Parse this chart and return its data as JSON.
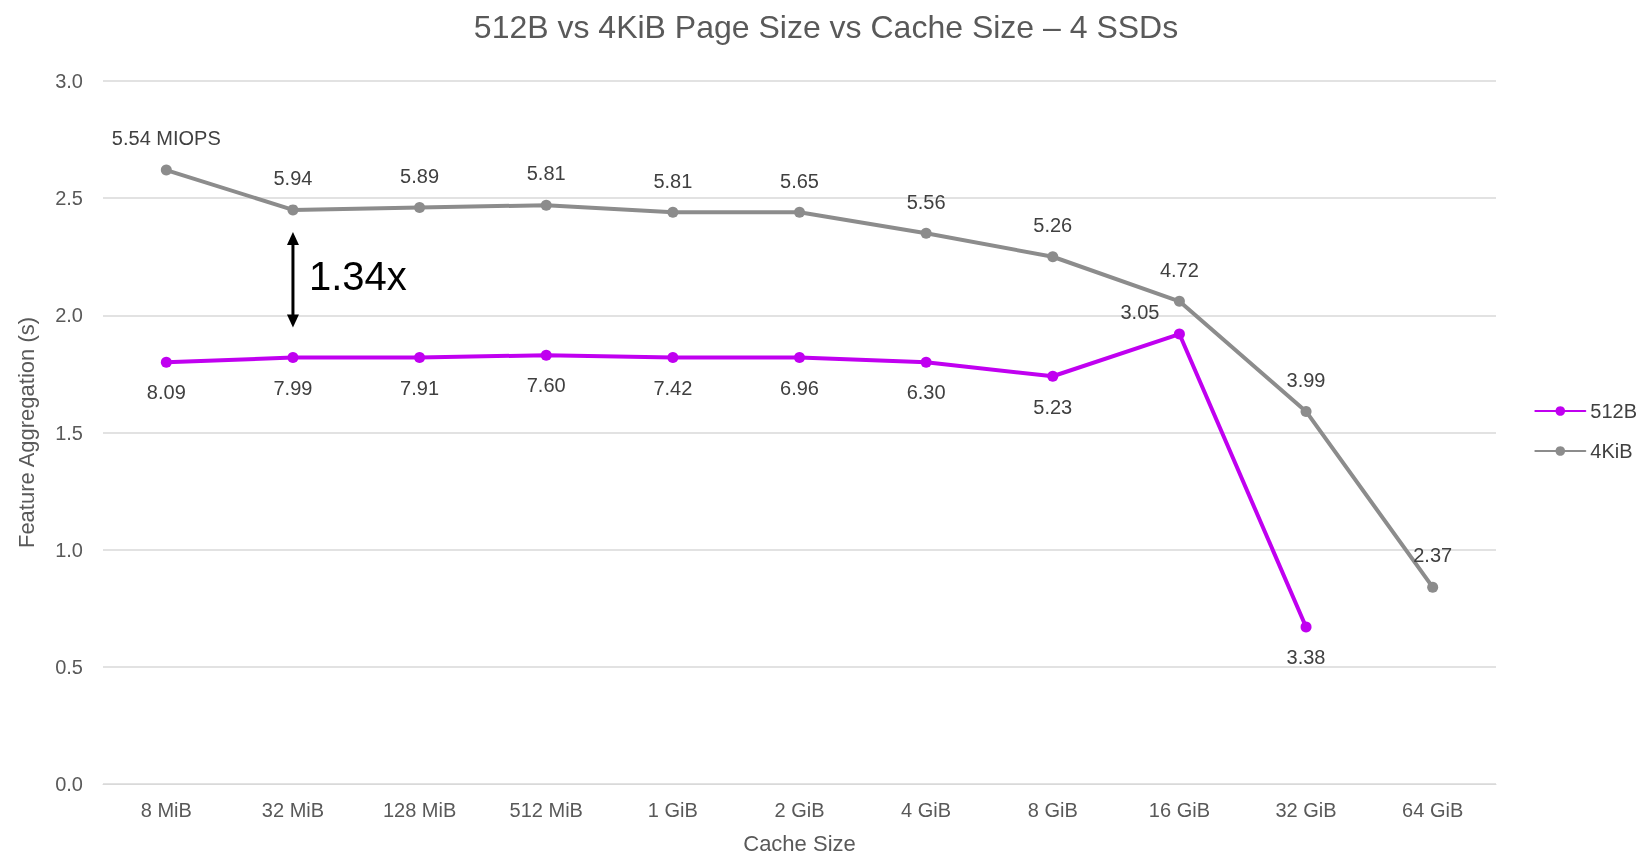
{
  "chart_data": {
    "type": "line",
    "title": "512B vs 4KiB Page Size vs Cache Size – 4 SSDs",
    "xlabel": "Cache Size",
    "ylabel": "Feature Aggregation (s)",
    "categories": [
      "8 MiB",
      "32 MiB",
      "128 MiB",
      "512 MiB",
      "1 GiB",
      "2 GiB",
      "4 GiB",
      "8 GiB",
      "16 GiB",
      "32 GiB",
      "64 GiB"
    ],
    "series": [
      {
        "name": "512B",
        "color": "#c000f0",
        "values": [
          1.8,
          1.82,
          1.82,
          1.83,
          1.82,
          1.82,
          1.8,
          1.74,
          1.92,
          0.67,
          null
        ]
      },
      {
        "name": "4KiB",
        "color": "#8c8c8c",
        "values": [
          2.62,
          2.45,
          2.46,
          2.47,
          2.44,
          2.44,
          2.35,
          2.25,
          2.06,
          1.59,
          0.84
        ]
      }
    ],
    "ylim": [
      0,
      3
    ],
    "yticks": [
      {
        "value": 0,
        "label": "0.0"
      },
      {
        "value": 0.5,
        "label": "0.5"
      },
      {
        "value": 1,
        "label": "1.0"
      },
      {
        "value": 1.5,
        "label": "1.5"
      },
      {
        "value": 2,
        "label": "2.0"
      },
      {
        "value": 2.5,
        "label": "2.5"
      },
      {
        "value": 3,
        "label": "3.0"
      }
    ],
    "annotations": [
      "1.34x",
      {
        "text": "8.09",
        "x": "8 MiB",
        "y": 1.8
      },
      {
        "text": "7.99",
        "x": "32 MiB",
        "y": 1.82
      },
      {
        "text": "7.91",
        "x": "128 MiB",
        "y": 1.82
      },
      {
        "text": "7.60",
        "x": "512 MiB",
        "y": 1.83
      },
      {
        "text": "7.42",
        "x": "1 GiB",
        "y": 1.82
      },
      {
        "text": "6.96",
        "x": "2 GiB",
        "y": 1.82
      },
      {
        "text": "6.30",
        "x": "4 GiB",
        "y": 1.8
      },
      {
        "text": "5.23",
        "x": "8 GiB",
        "y": 1.74
      },
      {
        "text": "3.05",
        "x": "16 GiB",
        "y": 1.92
      },
      {
        "text": "3.38",
        "x": "32 GiB",
        "y": 0.67
      },
      {
        "text": "5.54 MIOPS",
        "x": "8 MiB",
        "y": 2.62
      },
      {
        "text": "5.94",
        "x": "32 MiB",
        "y": 2.45
      },
      {
        "text": "5.89",
        "x": "128 MiB",
        "y": 2.46
      },
      {
        "text": "5.81",
        "x": "512 MiB",
        "y": 2.47
      },
      {
        "text": "5.81",
        "x": "1 GiB",
        "y": 2.44
      },
      {
        "text": "5.65",
        "x": "2 GiB",
        "y": 2.44
      },
      {
        "text": "5.56",
        "x": "4 GiB",
        "y": 2.35
      },
      {
        "text": "5.26",
        "x": "8 GiB",
        "y": 2.25
      },
      {
        "text": "4.72",
        "x": "16 GiB",
        "y": 2.06
      },
      {
        "text": "3.99",
        "x": "32 GiB",
        "y": 1.59
      },
      {
        "text": "2.37",
        "x": "64 GiB",
        "y": 0.84
      }
    ],
    "grid": "y",
    "legend": "right",
    "marker": "circle",
    "line_style": "solid"
  }
}
